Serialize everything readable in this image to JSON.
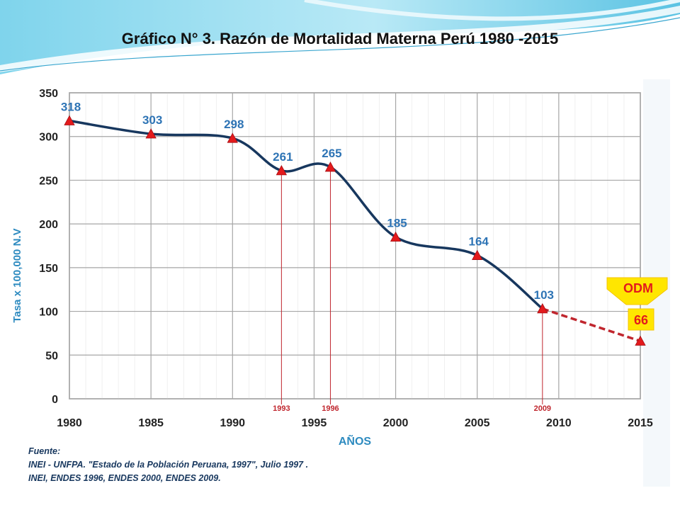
{
  "title": "Gráfico N° 3. Razón de Mortalidad Materna Perú 1980 -2015",
  "chart_data": {
    "type": "line",
    "title": "",
    "xlabel": "AÑOS",
    "ylabel": "Tasa x 100,000 N.V",
    "xlim": [
      1980,
      2015
    ],
    "ylim": [
      0,
      350
    ],
    "x_ticks": [
      "1980",
      "1985",
      "1990",
      "1995",
      "2000",
      "2005",
      "2010",
      "2015"
    ],
    "y_ticks": [
      "0",
      "50",
      "100",
      "150",
      "200",
      "250",
      "300",
      "350"
    ],
    "grid": true,
    "series": [
      {
        "x": [
          1980,
          1985,
          1990,
          1993,
          1996,
          2000,
          2005,
          2009
        ],
        "values": [
          318,
          303,
          298,
          261,
          265,
          185,
          164,
          103
        ],
        "labels": [
          "318",
          "303",
          "298",
          "261",
          "265",
          "185",
          "164",
          "103"
        ],
        "style": "solid",
        "color": "#17375e",
        "marker_color": "#e31a1c"
      },
      {
        "x": [
          2009,
          2015
        ],
        "values": [
          103,
          66
        ],
        "style": "dashed",
        "color": "#c0262e",
        "marker_color": "#e31a1c"
      }
    ],
    "reference_lines": [
      {
        "x": 1993,
        "label": "1993"
      },
      {
        "x": 1996,
        "label": "1996"
      },
      {
        "x": 2009,
        "label": "2009"
      }
    ],
    "callout": {
      "arrow_label": "ODM",
      "value_label": "66",
      "x": 2015,
      "y": 66
    },
    "colors": {
      "axis_text": "#222222",
      "value_text": "#2e74b5",
      "axis_title": "#2e8bc0",
      "reference": "#c0262e"
    }
  },
  "source": {
    "heading": "Fuente:",
    "lines": [
      "INEI - UNFPA. \"Estado de la Población Peruana, 1997\", Julio 1997 .",
      "INEI, ENDES 1996, ENDES 2000, ENDES 2009."
    ]
  }
}
